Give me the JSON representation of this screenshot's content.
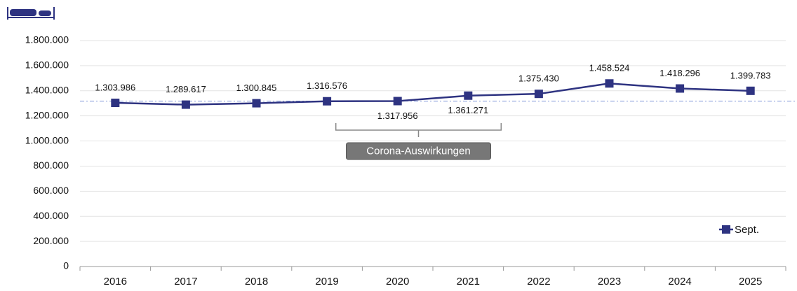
{
  "chart_data": {
    "type": "line",
    "categories": [
      "2016",
      "2017",
      "2018",
      "2019",
      "2020",
      "2021",
      "2022",
      "2023",
      "2024",
      "2025"
    ],
    "series": [
      {
        "name": "Sept.",
        "color": "#2e3381",
        "values": [
          1303986,
          1289617,
          1300845,
          1316576,
          1317956,
          1361271,
          1375430,
          1458524,
          1418296,
          1399783
        ],
        "value_labels": [
          "1.303.986",
          "1.289.617",
          "1.300.845",
          "1.316.576",
          "1.317.956",
          "1.361.271",
          "1.375.430",
          "1.458.524",
          "1.418.296",
          "1.399.783"
        ],
        "label_positions": [
          "above",
          "above",
          "above",
          "above",
          "below",
          "below",
          "above",
          "above",
          "above",
          "above"
        ]
      }
    ],
    "ylim": [
      0,
      1800000
    ],
    "yticks": [
      0,
      {
        "value": 200000,
        "label": "200.000"
      },
      {
        "value": 400000,
        "label": "400.000"
      },
      {
        "value": 600000,
        "label": "600.000"
      },
      {
        "value": 800000,
        "label": "800.000"
      },
      {
        "value": 1000000,
        "label": "1.000.000"
      },
      {
        "value": 1200000,
        "label": "1.200.000"
      },
      {
        "value": 1400000,
        "label": "1.400.000"
      },
      {
        "value": 1600000,
        "label": "1.600.000"
      },
      {
        "value": 1800000,
        "label": "1.800.000"
      }
    ],
    "grid": true,
    "reference_line": 1317956,
    "annotation": {
      "text": "Corona-Auswirkungen",
      "from": "2020",
      "to": "2021"
    },
    "legend": "lower right"
  }
}
